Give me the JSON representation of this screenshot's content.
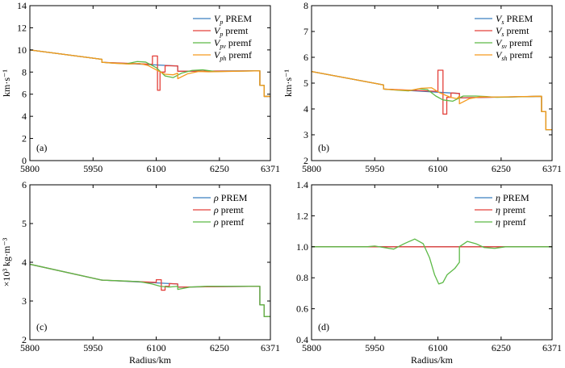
{
  "chart_data": [
    {
      "type": "line",
      "panel_label": "(a)",
      "ylabel": "km·s⁻¹",
      "xlabel": "",
      "xlim": [
        5800,
        6371
      ],
      "ylim": [
        0,
        14
      ],
      "x_ticks": [
        "5800",
        "5950",
        "6100",
        "6250",
        "6371"
      ],
      "y_ticks": [
        "0",
        "2",
        "4",
        "6",
        "8",
        "10",
        "12",
        "14"
      ],
      "legend": [
        {
          "sym": "V",
          "sub": "p",
          "rest": " PREM",
          "color": "#3b7fc0"
        },
        {
          "sym": "V",
          "sub": "p",
          "rest": " premt",
          "color": "#e3403a"
        },
        {
          "sym": "V",
          "sub": "pv",
          "rest": " premf",
          "color": "#5cb946"
        },
        {
          "sym": "V",
          "sub": "ph",
          "rest": " premf",
          "color": "#f59a1d"
        }
      ],
      "series": [
        {
          "name": "Vp PREM",
          "color": "#3b7fc0",
          "x": [
            5800,
            5971,
            5971,
            6151,
            6151,
            6346,
            6346,
            6356,
            6356,
            6371
          ],
          "y": [
            10.0,
            9.15,
            8.88,
            8.55,
            8.07,
            8.11,
            6.8,
            6.8,
            5.8,
            5.8
          ]
        },
        {
          "name": "Vp premt",
          "color": "#e3403a",
          "x": [
            5800,
            5971,
            5971,
            6091,
            6091,
            6103,
            6103,
            6109,
            6109,
            6121,
            6121,
            6151,
            6151,
            6346,
            6346,
            6356,
            6356,
            6371
          ],
          "y": [
            10.0,
            9.15,
            8.88,
            8.7,
            9.45,
            9.45,
            6.35,
            6.35,
            8.0,
            8.0,
            8.58,
            8.55,
            8.07,
            8.11,
            6.8,
            6.8,
            5.8,
            5.8
          ]
        },
        {
          "name": "Vpv premf",
          "color": "#5cb946",
          "x": [
            5800,
            5971,
            5971,
            6000,
            6030,
            6055,
            6075,
            6100,
            6121,
            6140,
            6160,
            6185,
            6210,
            6240,
            6346,
            6346,
            6356,
            6356,
            6371
          ],
          "y": [
            10.0,
            9.15,
            8.88,
            8.8,
            8.75,
            8.95,
            8.9,
            8.4,
            7.65,
            7.5,
            7.9,
            8.15,
            8.2,
            8.05,
            8.11,
            6.8,
            6.8,
            5.8,
            5.8
          ]
        },
        {
          "name": "Vph premf",
          "color": "#f59a1d",
          "x": [
            5800,
            5971,
            5971,
            6000,
            6035,
            6060,
            6080,
            6100,
            6121,
            6140,
            6151,
            6151,
            6175,
            6200,
            6225,
            6346,
            6346,
            6356,
            6356,
            6371
          ],
          "y": [
            10.0,
            9.15,
            8.88,
            8.8,
            8.72,
            8.78,
            8.6,
            8.2,
            7.8,
            7.75,
            7.9,
            7.4,
            7.85,
            8.05,
            8.02,
            8.11,
            6.8,
            6.8,
            5.8,
            5.8
          ]
        }
      ]
    },
    {
      "type": "line",
      "panel_label": "(b)",
      "ylabel": "km·s⁻¹",
      "xlabel": "",
      "xlim": [
        5800,
        6371
      ],
      "ylim": [
        2,
        8
      ],
      "x_ticks": [
        "5800",
        "5950",
        "6100",
        "6250",
        "6371"
      ],
      "y_ticks": [
        "2",
        "3",
        "4",
        "5",
        "6",
        "7",
        "8"
      ],
      "legend": [
        {
          "sym": "V",
          "sub": "s",
          "rest": " PREM",
          "color": "#3b7fc0"
        },
        {
          "sym": "V",
          "sub": "s",
          "rest": " premt",
          "color": "#e3403a"
        },
        {
          "sym": "V",
          "sub": "sv",
          "rest": " premf",
          "color": "#5cb946"
        },
        {
          "sym": "V",
          "sub": "sh",
          "rest": " premf",
          "color": "#f59a1d"
        }
      ],
      "series": [
        {
          "name": "Vs PREM",
          "color": "#3b7fc0",
          "x": [
            5800,
            5971,
            5971,
            6151,
            6151,
            6346,
            6346,
            6356,
            6356,
            6371
          ],
          "y": [
            5.45,
            4.93,
            4.77,
            4.6,
            4.43,
            4.49,
            3.9,
            3.9,
            3.2,
            3.2
          ]
        },
        {
          "name": "Vs premt",
          "color": "#e3403a",
          "x": [
            5800,
            5971,
            5971,
            6100,
            6100,
            6112,
            6112,
            6121,
            6121,
            6131,
            6131,
            6151,
            6151,
            6346,
            6346,
            6356,
            6356,
            6371
          ],
          "y": [
            5.45,
            4.93,
            4.77,
            4.68,
            5.5,
            5.5,
            3.8,
            3.8,
            4.45,
            4.45,
            4.62,
            4.6,
            4.43,
            4.49,
            3.9,
            3.9,
            3.2,
            3.2
          ]
        },
        {
          "name": "Vsv premf",
          "color": "#5cb946",
          "x": [
            5800,
            5971,
            5971,
            6000,
            6030,
            6055,
            6075,
            6095,
            6112,
            6135,
            6160,
            6190,
            6215,
            6240,
            6346,
            6346,
            6356,
            6356,
            6371
          ],
          "y": [
            5.45,
            4.93,
            4.77,
            4.73,
            4.7,
            4.78,
            4.75,
            4.5,
            4.35,
            4.3,
            4.5,
            4.5,
            4.48,
            4.45,
            4.49,
            3.9,
            3.9,
            3.2,
            3.2
          ]
        },
        {
          "name": "Vsh premf",
          "color": "#f59a1d",
          "x": [
            5800,
            5971,
            5971,
            6000,
            6035,
            6060,
            6085,
            6105,
            6130,
            6145,
            6151,
            6151,
            6175,
            6200,
            6230,
            6346,
            6346,
            6356,
            6356,
            6371
          ],
          "y": [
            5.45,
            4.93,
            4.77,
            4.74,
            4.72,
            4.8,
            4.82,
            4.62,
            4.45,
            4.4,
            4.5,
            4.2,
            4.4,
            4.47,
            4.46,
            4.49,
            3.9,
            3.9,
            3.2,
            3.2
          ]
        }
      ]
    },
    {
      "type": "line",
      "panel_label": "(c)",
      "ylabel": "×10³ kg·m⁻³",
      "xlabel": "Radius/km",
      "xlim": [
        5800,
        6371
      ],
      "ylim": [
        2,
        6
      ],
      "x_ticks": [
        "5800",
        "5950",
        "6100",
        "6250",
        "6371"
      ],
      "y_ticks": [
        "2",
        "3",
        "4",
        "5",
        "6"
      ],
      "legend": [
        {
          "sym": "ρ",
          "sub": "",
          "rest": " PREM",
          "color": "#3b7fc0"
        },
        {
          "sym": "ρ",
          "sub": "",
          "rest": " premt",
          "color": "#e3403a"
        },
        {
          "sym": "ρ",
          "sub": "",
          "rest": " premf",
          "color": "#5cb946"
        }
      ],
      "series": [
        {
          "name": "ρ PREM",
          "color": "#3b7fc0",
          "x": [
            5800,
            5971,
            5971,
            6151,
            6151,
            6346,
            6346,
            6356,
            6356,
            6371
          ],
          "y": [
            3.95,
            3.54,
            3.54,
            3.44,
            3.36,
            3.38,
            2.9,
            2.9,
            2.6,
            2.6
          ]
        },
        {
          "name": "ρ premt",
          "color": "#e3403a",
          "x": [
            5800,
            5971,
            5971,
            6100,
            6100,
            6112,
            6112,
            6121,
            6121,
            6131,
            6131,
            6151,
            6151,
            6346,
            6346,
            6356,
            6356,
            6371
          ],
          "y": [
            3.95,
            3.54,
            3.54,
            3.48,
            3.55,
            3.55,
            3.28,
            3.28,
            3.38,
            3.38,
            3.45,
            3.44,
            3.36,
            3.38,
            2.9,
            2.9,
            2.6,
            2.6
          ]
        },
        {
          "name": "ρ premf",
          "color": "#5cb946",
          "x": [
            5800,
            5971,
            5971,
            6020,
            6060,
            6090,
            6110,
            6130,
            6151,
            6151,
            6180,
            6220,
            6346,
            6346,
            6356,
            6356,
            6371
          ],
          "y": [
            3.95,
            3.54,
            3.54,
            3.52,
            3.5,
            3.44,
            3.38,
            3.36,
            3.38,
            3.3,
            3.36,
            3.38,
            3.38,
            2.9,
            2.9,
            2.6,
            2.6
          ]
        }
      ]
    },
    {
      "type": "line",
      "panel_label": "(d)",
      "ylabel": "",
      "xlabel": "Radius/km",
      "xlim": [
        5800,
        6371
      ],
      "ylim": [
        0.4,
        1.4
      ],
      "x_ticks": [
        "5800",
        "5950",
        "6100",
        "6250",
        "6371"
      ],
      "y_ticks": [
        "0.4",
        "0.6",
        "0.8",
        "1.0",
        "1.2",
        "1.4"
      ],
      "legend": [
        {
          "sym": "η",
          "sub": "",
          "rest": " PREM",
          "color": "#3b7fc0"
        },
        {
          "sym": "η",
          "sub": "",
          "rest": " premt",
          "color": "#e3403a"
        },
        {
          "sym": "η",
          "sub": "",
          "rest": " premf",
          "color": "#5cb946"
        }
      ],
      "series": [
        {
          "name": "η PREM",
          "color": "#3b7fc0",
          "x": [
            5800,
            6371
          ],
          "y": [
            1.0,
            1.0
          ]
        },
        {
          "name": "η premt",
          "color": "#e3403a",
          "x": [
            5800,
            6371
          ],
          "y": [
            1.0,
            1.0
          ]
        },
        {
          "name": "η premf",
          "color": "#5cb946",
          "x": [
            5800,
            5900,
            5930,
            5950,
            5972,
            5995,
            6020,
            6045,
            6065,
            6080,
            6092,
            6102,
            6112,
            6122,
            6140,
            6151,
            6151,
            6170,
            6190,
            6210,
            6235,
            6260,
            6300,
            6371
          ],
          "y": [
            1.0,
            1.0,
            1.0,
            1.005,
            0.995,
            0.985,
            1.02,
            1.05,
            1.02,
            0.93,
            0.82,
            0.76,
            0.77,
            0.82,
            0.86,
            0.9,
            1.0,
            1.035,
            1.02,
            0.995,
            0.99,
            1.0,
            1.0,
            1.0
          ]
        }
      ]
    }
  ]
}
